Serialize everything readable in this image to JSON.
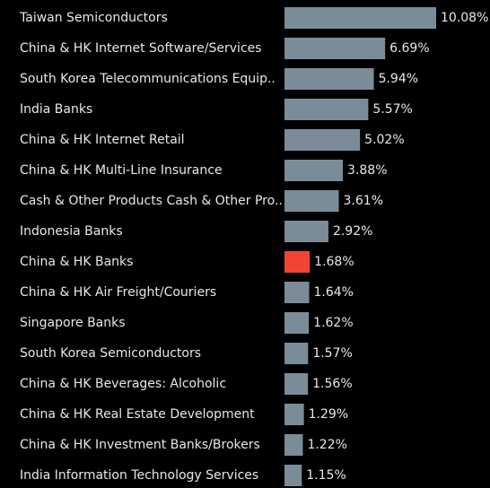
{
  "chart_data": {
    "type": "bar",
    "orientation": "horizontal",
    "categories": [
      "Taiwan Semiconductors",
      "China & HK Internet Software/Services",
      "South Korea Telecommunications Equip..",
      "India Banks",
      "China & HK Internet Retail",
      "China & HK Multi-Line Insurance",
      "Cash & Other Products Cash & Other Pro..",
      "Indonesia Banks",
      "China & HK Banks",
      "China & HK Air Freight/Couriers",
      "Singapore Banks",
      "South Korea Semiconductors",
      "China & HK Beverages: Alcoholic",
      "China & HK Real Estate Development",
      "China & HK Investment Banks/Brokers",
      "India Information Technology Services"
    ],
    "values": [
      10.08,
      6.69,
      5.94,
      5.57,
      5.02,
      3.88,
      3.61,
      2.92,
      1.68,
      1.64,
      1.62,
      1.57,
      1.56,
      1.29,
      1.22,
      1.15
    ],
    "value_labels": [
      "10.08%",
      "6.69%",
      "5.94%",
      "5.57%",
      "5.02%",
      "3.88%",
      "3.61%",
      "2.92%",
      "1.68%",
      "1.64%",
      "1.62%",
      "1.57%",
      "1.56%",
      "1.29%",
      "1.22%",
      "1.15%"
    ],
    "colors": [
      "#7b8c99",
      "#7b8c99",
      "#7b8c99",
      "#7b8c99",
      "#7b8c99",
      "#7b8c99",
      "#7b8c99",
      "#7b8c99",
      "#f44336",
      "#7b8c99",
      "#7b8c99",
      "#7b8c99",
      "#7b8c99",
      "#7b8c99",
      "#7b8c99",
      "#7b8c99"
    ]
  }
}
